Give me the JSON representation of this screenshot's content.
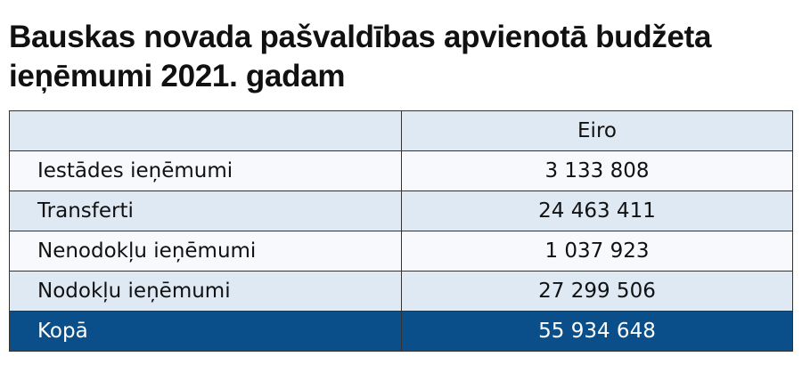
{
  "header": {
    "title_lines": [
      "Bauskas novada pašvaldības apvienotā budžeta",
      "ieņēmumi 2021. gadam"
    ]
  },
  "table": {
    "value_column": "Eiro",
    "rows": [
      [
        "Iestādes ieņēmumi",
        "3 133 808"
      ],
      [
        "Transferti",
        "24 463 411"
      ],
      [
        "Nenodokļu ieņēmumi",
        "1 037 923"
      ],
      [
        "Nodokļu ieņēmumi",
        "27 299 506"
      ]
    ],
    "total": [
      "Kopā",
      "55 934 648"
    ]
  }
}
